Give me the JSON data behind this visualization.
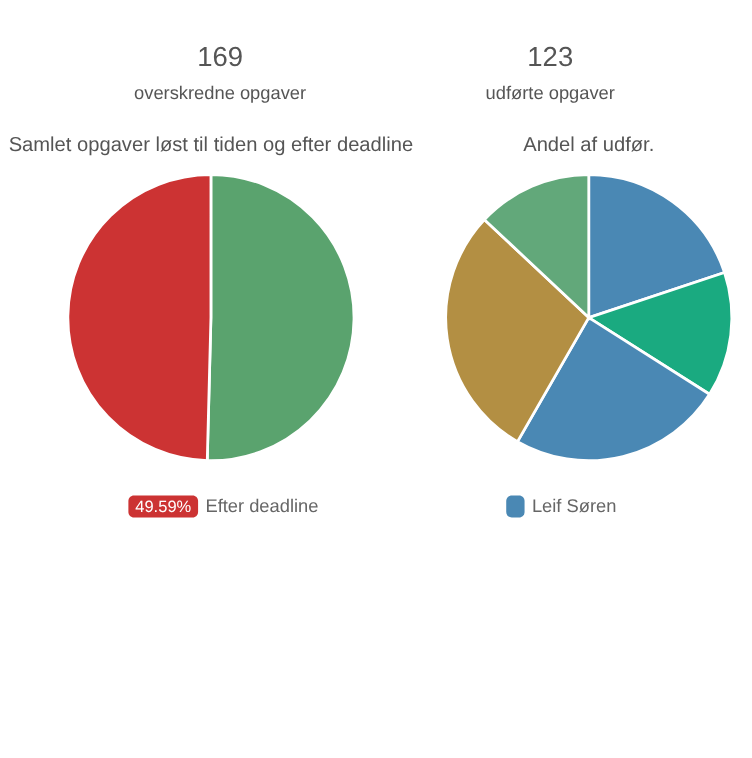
{
  "chart_data": [
    {
      "type": "other",
      "annotations": [
        "169",
        "overskredne opgaver",
        "123",
        "udførte opgaver"
      ]
    },
    {
      "type": "pie",
      "title": "Samlet opgaver løst til tiden og efter deadline",
      "categories": [
        null,
        "Efter deadline"
      ],
      "values": [
        50.41,
        49.59
      ],
      "colors": [
        "#5aa36e",
        "#cc3333"
      ],
      "value_labels": [
        null,
        "49.59%"
      ],
      "legend": "bottom"
    },
    {
      "type": "pie",
      "title": "Andel af udfør.",
      "categories": [
        "Leif Søren",
        null,
        null,
        null,
        null
      ],
      "values": [
        19.9,
        14.1,
        24.3,
        28.7,
        13.0
      ],
      "colors": [
        "#4a88b4",
        "#1aaa80",
        "#4a88b4",
        "#b38f43",
        "#62a87a"
      ],
      "legend": "bottom"
    }
  ]
}
